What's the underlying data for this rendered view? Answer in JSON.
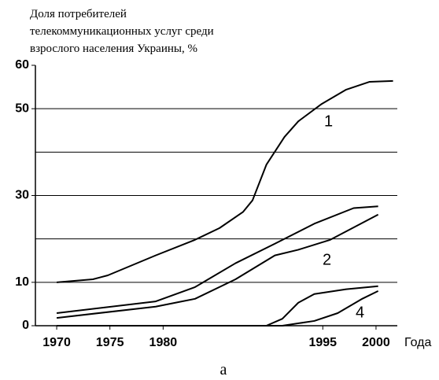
{
  "chart_data": {
    "type": "line",
    "title": [
      "Доля потребителей",
      "телекоммуникационных услуг среди",
      "взрослого населения Украины, %"
    ],
    "x_label": "Года",
    "caption": "а",
    "xlim": [
      1968,
      2002
    ],
    "xticks": [
      1970,
      1975,
      1980,
      1995,
      2000
    ],
    "ylim": [
      0,
      60
    ],
    "yticks": [
      0,
      10,
      30,
      50,
      60
    ],
    "gridlines": [
      10,
      20,
      30,
      40,
      50
    ],
    "color": "#000000",
    "series": [
      {
        "x": [
          1970,
          1973.4,
          1974.8,
          1979.3,
          1983,
          1985.3,
          1987.5,
          1988.4,
          1989.7,
          1991.4,
          1992.7,
          1994.9,
          1997.2,
          1999.4,
          2001.6
        ],
        "values": [
          10,
          10.7,
          11.6,
          16.2,
          19.8,
          22.5,
          26.2,
          28.9,
          37.1,
          43.5,
          47.1,
          51.1,
          54.4,
          56.2,
          56.4
        ]
      },
      {
        "x": [
          1970,
          1979.3,
          1983,
          1986.8,
          1990.5,
          1994.2,
          1997.9,
          2000.2
        ],
        "values": [
          2.9,
          5.6,
          8.9,
          14.4,
          18.9,
          23.5,
          27.1,
          27.5
        ]
      },
      {
        "x": [
          1970,
          1979.3,
          1983,
          1986.8,
          1990.5,
          1992.7,
          1995.7,
          2000.2
        ],
        "values": [
          1.8,
          4.4,
          6.2,
          10.7,
          16.2,
          17.5,
          19.8,
          25.6
        ]
      },
      {
        "x": [
          1970,
          1989.7,
          1991.2,
          1992.7,
          1994.2,
          1997.2,
          2000.2
        ],
        "values": [
          0,
          0,
          1.6,
          5.3,
          7.3,
          8.4,
          9.1
        ]
      },
      {
        "x": [
          1970,
          1991.2,
          1994.2,
          1996.4,
          1998.7,
          2000.2
        ],
        "values": [
          0,
          0,
          1.1,
          2.9,
          6.2,
          8.0
        ]
      }
    ],
    "annotations": [
      "1",
      "2",
      "4"
    ]
  }
}
